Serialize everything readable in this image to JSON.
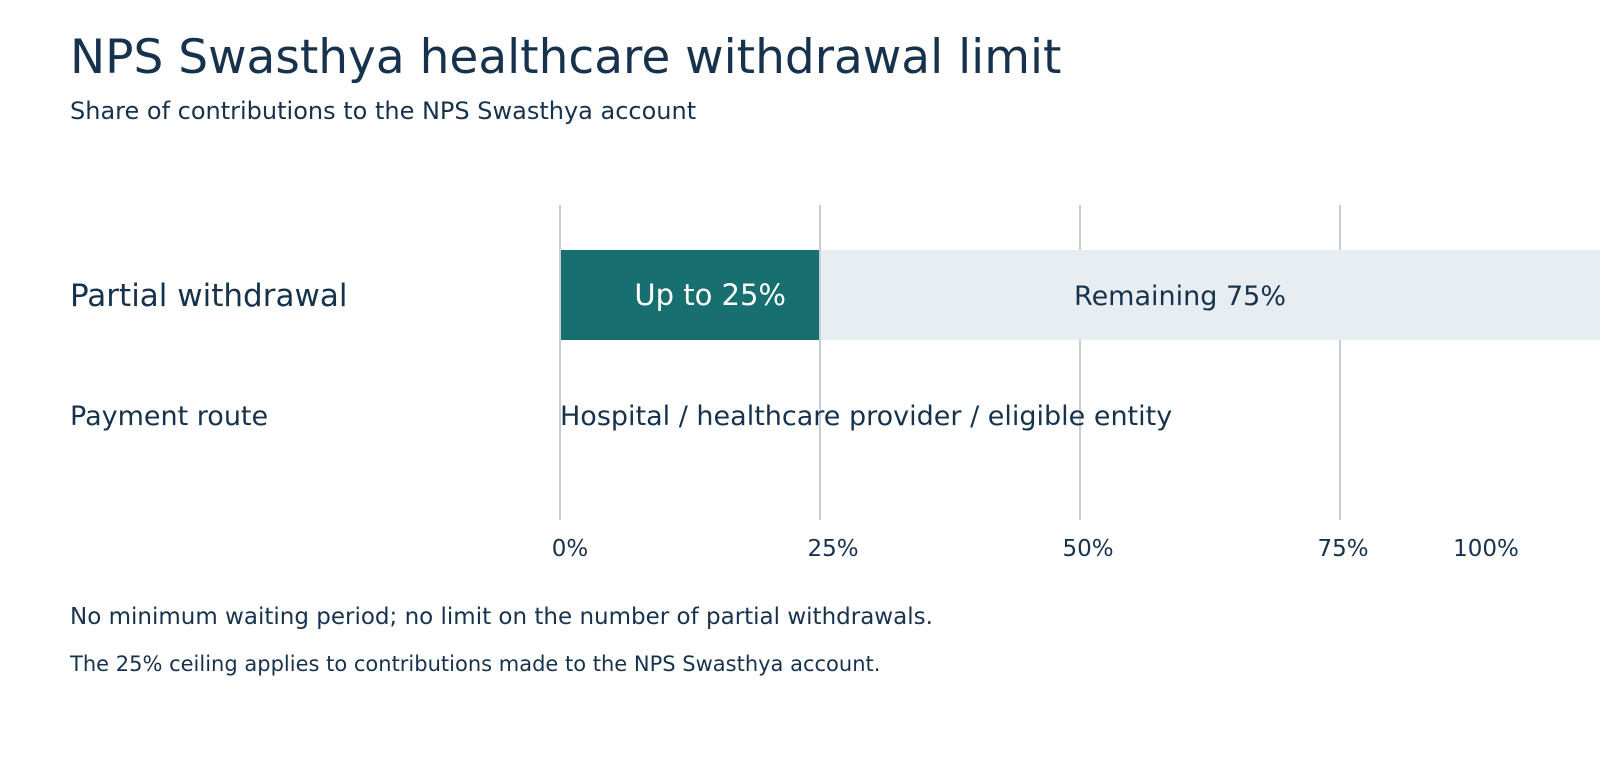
{
  "title": "NPS Swasthya healthcare withdrawal limit",
  "subtitle": "Share of contributions to the NPS Swasthya account",
  "notes": [
    "No minimum waiting period; no limit on the number of partial withdrawals.",
    "The 25% ceiling applies to contributions made to the NPS Swasthya account."
  ],
  "colors": {
    "text": "#17324d",
    "accent": "#176f6f",
    "remaining": "#e8edf2",
    "grid": "#c8cdd2",
    "on_accent_text": "#ffffff"
  },
  "chart_data": {
    "type": "bar",
    "orientation": "horizontal",
    "stacked": true,
    "xlim": [
      0,
      100
    ],
    "ticks": [
      {
        "value": 0,
        "label": "0%"
      },
      {
        "value": 25,
        "label": "25%"
      },
      {
        "value": 50,
        "label": "50%"
      },
      {
        "value": 75,
        "label": "75%"
      },
      {
        "value": 100,
        "label": "100%"
      }
    ],
    "grid": true,
    "rows": [
      {
        "label": "Partial withdrawal",
        "segments": [
          {
            "value": 25,
            "label": "Up to 25%",
            "color": "#176f6f"
          },
          {
            "value": 75,
            "label": "Remaining 75%",
            "color": "#e8edf2"
          }
        ]
      },
      {
        "label": "Payment route",
        "text": "Hospital / healthcare provider / eligible entity"
      }
    ]
  }
}
